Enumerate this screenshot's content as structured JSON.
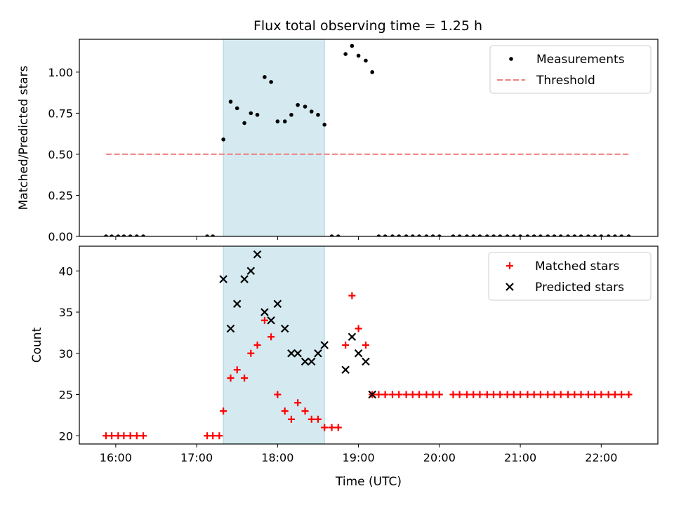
{
  "title": "Flux total observing time = 1.25 h",
  "chart_data": [
    {
      "type": "scatter",
      "title": "Flux total observing time = 1.25 h",
      "xlabel": "",
      "ylabel": "Matched/Predicted stars",
      "x_unit": "UTC hours",
      "xlim": [
        15.55,
        22.7
      ],
      "ylim": [
        0,
        1.2
      ],
      "y_ticks": [
        0.0,
        0.25,
        0.5,
        0.75,
        1.0
      ],
      "y_tick_labels": [
        "0.00",
        "0.25",
        "0.50",
        "0.75",
        "1.00"
      ],
      "legend_position": "top-right",
      "shaded_interval": [
        17.33,
        18.58
      ],
      "shaded_color": "#d4eaf0",
      "series": [
        {
          "name": "Measurements",
          "marker": "dot",
          "color": "#000000",
          "x": [
            15.88,
            15.95,
            16.03,
            16.1,
            16.18,
            16.26,
            16.34,
            17.13,
            17.2,
            17.33,
            17.42,
            17.5,
            17.59,
            17.67,
            17.75,
            17.84,
            17.92,
            18.0,
            18.09,
            18.17,
            18.25,
            18.34,
            18.42,
            18.5,
            18.58,
            18.67,
            18.75,
            18.84,
            18.92,
            19.0,
            19.09,
            19.17,
            19.25,
            19.33,
            19.42,
            19.5,
            19.59,
            19.67,
            19.75,
            19.84,
            19.92,
            20.0,
            20.17,
            20.25,
            20.34,
            20.42,
            20.5,
            20.59,
            20.67,
            20.75,
            20.84,
            20.92,
            21.0,
            21.09,
            21.17,
            21.25,
            21.34,
            21.42,
            21.5,
            21.59,
            21.67,
            21.75,
            21.84,
            21.92,
            22.0,
            22.09,
            22.17,
            22.25,
            22.34
          ],
          "y": [
            0,
            0,
            0,
            0,
            0,
            0,
            0,
            0,
            0,
            0.59,
            0.82,
            0.78,
            0.69,
            0.75,
            0.74,
            0.97,
            0.94,
            0.7,
            0.7,
            0.74,
            0.8,
            0.79,
            0.76,
            0.74,
            0.68,
            0,
            0,
            1.11,
            1.16,
            1.1,
            1.07,
            1.0,
            0,
            0,
            0,
            0,
            0,
            0,
            0,
            0,
            0,
            0,
            0,
            0,
            0,
            0,
            0,
            0,
            0,
            0,
            0,
            0,
            0,
            0,
            0,
            0,
            0,
            0,
            0,
            0,
            0,
            0,
            0,
            0,
            0,
            0,
            0,
            0,
            0
          ]
        },
        {
          "name": "Threshold",
          "line_style": "dashed",
          "color": "#f08080",
          "x": [
            15.88,
            22.34
          ],
          "y": [
            0.5,
            0.5
          ]
        }
      ]
    },
    {
      "type": "scatter",
      "title": "",
      "xlabel": "Time (UTC)",
      "ylabel": "Count",
      "x_unit": "UTC hours",
      "xlim": [
        15.55,
        22.7
      ],
      "ylim": [
        19,
        43
      ],
      "x_ticks": [
        16,
        17,
        18,
        19,
        20,
        21,
        22
      ],
      "x_tick_labels": [
        "16:00",
        "17:00",
        "18:00",
        "19:00",
        "20:00",
        "21:00",
        "22:00"
      ],
      "y_ticks": [
        20,
        25,
        30,
        35,
        40
      ],
      "y_tick_labels": [
        "20",
        "25",
        "30",
        "35",
        "40"
      ],
      "legend_position": "top-right",
      "shaded_interval": [
        17.33,
        18.58
      ],
      "shaded_color": "#d4eaf0",
      "series": [
        {
          "name": "Matched stars",
          "marker": "plus",
          "color": "#ff0000",
          "x": [
            15.88,
            15.95,
            16.03,
            16.1,
            16.18,
            16.26,
            16.34,
            17.13,
            17.2,
            17.28,
            17.33,
            17.42,
            17.5,
            17.59,
            17.67,
            17.75,
            17.84,
            17.92,
            18.0,
            18.09,
            18.17,
            18.25,
            18.34,
            18.42,
            18.5,
            18.58,
            18.67,
            18.75,
            18.84,
            18.92,
            19.0,
            19.09,
            19.17,
            19.25,
            19.33,
            19.42,
            19.5,
            19.59,
            19.67,
            19.75,
            19.84,
            19.92,
            20.0,
            20.17,
            20.25,
            20.34,
            20.42,
            20.5,
            20.59,
            20.67,
            20.75,
            20.84,
            20.92,
            21.0,
            21.09,
            21.17,
            21.25,
            21.34,
            21.42,
            21.5,
            21.59,
            21.67,
            21.75,
            21.84,
            21.92,
            22.0,
            22.09,
            22.17,
            22.25,
            22.34
          ],
          "y": [
            20,
            20,
            20,
            20,
            20,
            20,
            20,
            20,
            20,
            20,
            23,
            27,
            28,
            27,
            30,
            31,
            34,
            32,
            25,
            23,
            22,
            24,
            23,
            22,
            22,
            21,
            21,
            21,
            31,
            37,
            33,
            31,
            25,
            25,
            25,
            25,
            25,
            25,
            25,
            25,
            25,
            25,
            25,
            25,
            25,
            25,
            25,
            25,
            25,
            25,
            25,
            25,
            25,
            25,
            25,
            25,
            25,
            25,
            25,
            25,
            25,
            25,
            25,
            25,
            25,
            25,
            25,
            25,
            25,
            25
          ]
        },
        {
          "name": "Predicted stars",
          "marker": "x",
          "color": "#000000",
          "x": [
            17.33,
            17.42,
            17.5,
            17.59,
            17.67,
            17.75,
            17.84,
            17.92,
            18.0,
            18.09,
            18.17,
            18.25,
            18.34,
            18.42,
            18.5,
            18.58,
            18.84,
            18.92,
            19.0,
            19.09,
            19.17
          ],
          "y": [
            39,
            33,
            36,
            39,
            40,
            42,
            35,
            34,
            36,
            33,
            30,
            30,
            29,
            29,
            30,
            31,
            28,
            32,
            30,
            29,
            25
          ]
        }
      ]
    }
  ]
}
